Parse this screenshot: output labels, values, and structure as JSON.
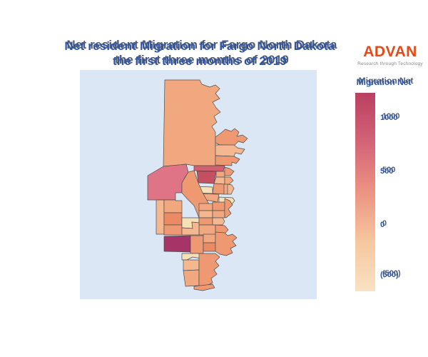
{
  "header": {
    "title_line1": "Net resident Migration for Fargo North Dakota",
    "title_line2": "the first three months of 2019",
    "title_color": "#2e55a5"
  },
  "logo": {
    "brand": "ADVAN",
    "tagline": "Research through Technology",
    "brand_color": "#e64a19"
  },
  "chart_data": {
    "type": "choropleth",
    "title": "Net resident Migration for Fargo North Dakota the first three months of 2019",
    "region_mapped": "Fargo, North Dakota census tracts",
    "legend_position": "right",
    "panel_background": "#dbe7f4",
    "colorbar": {
      "label": "Migration Net",
      "ticks": [
        "1000",
        "500",
        "0",
        "(500)"
      ],
      "gradient_top_to_bottom": [
        "#b94062",
        "#d46476",
        "#ec9383",
        "#f6c79e",
        "#f8e2c4"
      ]
    },
    "palette": {
      "peach": "#f2a87f",
      "salmon": "#ef9973",
      "orange": "#eb8a63",
      "lightOrange": "#f4b78f",
      "cream": "#f6e0b8",
      "rose": "#de7486",
      "red": "#d2606f",
      "darkRed": "#c74f62",
      "magenta": "#a63467"
    },
    "regions": [
      {
        "id": "tract-01",
        "color_key": "peach"
      },
      {
        "id": "tract-02",
        "color_key": "salmon"
      },
      {
        "id": "tract-03",
        "color_key": "lightOrange"
      },
      {
        "id": "tract-04",
        "color_key": "salmon"
      },
      {
        "id": "tract-05",
        "color_key": "red"
      },
      {
        "id": "tract-06",
        "color_key": "darkRed"
      },
      {
        "id": "tract-07",
        "color_key": "peach"
      },
      {
        "id": "tract-08",
        "color_key": "salmon"
      },
      {
        "id": "tract-09",
        "color_key": "lightOrange"
      },
      {
        "id": "tract-10",
        "color_key": "peach"
      },
      {
        "id": "tract-11",
        "color_key": "salmon"
      },
      {
        "id": "tract-12",
        "color_key": "peach"
      },
      {
        "id": "tract-13",
        "color_key": "lightOrange"
      },
      {
        "id": "tract-14",
        "color_key": "cream"
      },
      {
        "id": "tract-15",
        "color_key": "peach"
      },
      {
        "id": "tract-16",
        "color_key": "cream"
      },
      {
        "id": "tract-17",
        "color_key": "rose"
      },
      {
        "id": "tract-18",
        "color_key": "salmon"
      },
      {
        "id": "tract-19",
        "color_key": "peach"
      },
      {
        "id": "tract-20",
        "color_key": "salmon"
      },
      {
        "id": "tract-21",
        "color_key": "lightOrange"
      },
      {
        "id": "tract-22",
        "color_key": "peach"
      },
      {
        "id": "tract-23",
        "color_key": "salmon"
      },
      {
        "id": "tract-24",
        "color_key": "lightOrange"
      },
      {
        "id": "tract-25",
        "color_key": "peach"
      },
      {
        "id": "tract-26",
        "color_key": "orange"
      },
      {
        "id": "tract-27",
        "color_key": "salmon"
      },
      {
        "id": "tract-28",
        "color_key": "cream"
      },
      {
        "id": "tract-29",
        "color_key": "salmon"
      },
      {
        "id": "tract-30",
        "color_key": "lightOrange"
      },
      {
        "id": "tract-31",
        "color_key": "peach"
      },
      {
        "id": "tract-32",
        "color_key": "salmon"
      },
      {
        "id": "tract-33",
        "color_key": "lightOrange"
      },
      {
        "id": "tract-34",
        "color_key": "magenta"
      },
      {
        "id": "tract-35",
        "color_key": "salmon"
      },
      {
        "id": "tract-36",
        "color_key": "peach"
      },
      {
        "id": "tract-37",
        "color_key": "orange"
      },
      {
        "id": "tract-38",
        "color_key": "salmon"
      },
      {
        "id": "tract-39",
        "color_key": "cream"
      },
      {
        "id": "tract-40",
        "color_key": "lightOrange"
      },
      {
        "id": "tract-41",
        "color_key": "peach"
      },
      {
        "id": "tract-42",
        "color_key": "salmon"
      },
      {
        "id": "tract-43",
        "color_key": "salmon"
      }
    ]
  }
}
